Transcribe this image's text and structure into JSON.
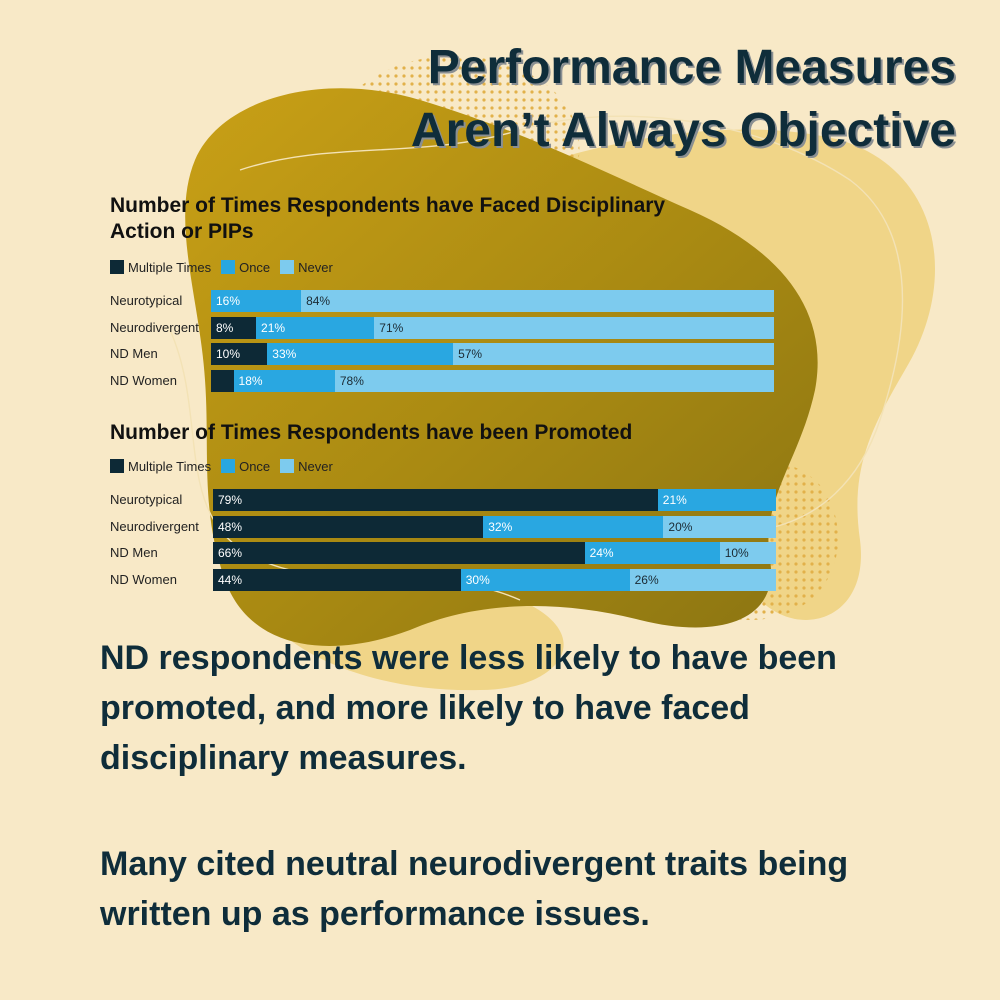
{
  "heading": {
    "line1": "Performance Measures",
    "line2": "Aren’t Always Objective"
  },
  "colors": {
    "background": "#f8e9c7",
    "blob": "#c9a016",
    "blob_dark": "#8a7412",
    "blob_light": "#f0d588",
    "multiple": "#0d2936",
    "once": "#29a7e1",
    "never": "#7dcbee",
    "heading": "#0f2d3a"
  },
  "chart_data": [
    {
      "type": "bar",
      "orientation": "horizontal-stacked-100",
      "title_line1": "Number of Times Respondents have Faced Disciplinary",
      "title_line2": "Action or PIPs",
      "legend": [
        "Multiple Times",
        "Once",
        "Never"
      ],
      "categories": [
        "Neurotypical",
        "Neurodivergent",
        "ND Men",
        "ND Women"
      ],
      "series": [
        {
          "name": "Multiple Times",
          "values": [
            0,
            8,
            10,
            4
          ],
          "labels": [
            "",
            "8%",
            "10%",
            ""
          ]
        },
        {
          "name": "Once",
          "values": [
            16,
            21,
            33,
            18
          ],
          "labels": [
            "16%",
            "21%",
            "33%",
            "18%"
          ]
        },
        {
          "name": "Never",
          "values": [
            84,
            71,
            57,
            78
          ],
          "labels": [
            "84%",
            "71%",
            "57%",
            "78%"
          ]
        }
      ]
    },
    {
      "type": "bar",
      "orientation": "horizontal-stacked-100",
      "title_line1": "Number of Times Respondents have been Promoted",
      "title_line2": "",
      "legend": [
        "Multiple Times",
        "Once",
        "Never"
      ],
      "categories": [
        "Neurotypical",
        "Neurodivergent",
        "ND Men",
        "ND Women"
      ],
      "series": [
        {
          "name": "Multiple Times",
          "values": [
            79,
            48,
            66,
            44
          ],
          "labels": [
            "79%",
            "48%",
            "66%",
            "44%"
          ]
        },
        {
          "name": "Once",
          "values": [
            21,
            32,
            24,
            30
          ],
          "labels": [
            "21%",
            "32%",
            "24%",
            "30%"
          ]
        },
        {
          "name": "Never",
          "values": [
            0,
            20,
            10,
            26
          ],
          "labels": [
            "",
            "20%",
            "10%",
            "26%"
          ]
        }
      ]
    }
  ],
  "body": {
    "paragraph1_lines": [
      "ND respondents were less likely to have been",
      "promoted, and more likely to have faced",
      "disciplinary measures."
    ],
    "paragraph2_lines": [
      "Many cited neutral neurodivergent traits being",
      "written up as performance issues."
    ]
  }
}
